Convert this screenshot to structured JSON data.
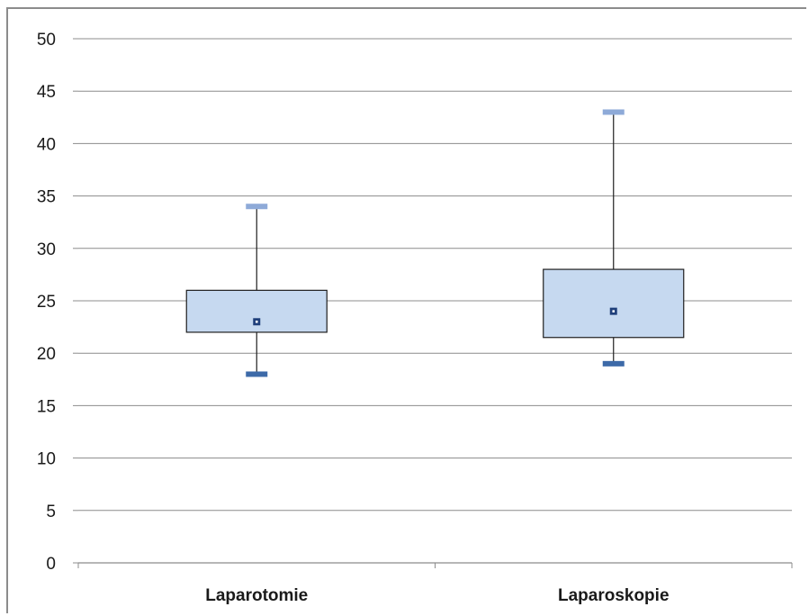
{
  "chart_data": {
    "type": "boxplot",
    "categories": [
      "Laparotomie",
      "Laparoskopie"
    ],
    "boxes": [
      {
        "category": "Laparotomie",
        "min": 18,
        "q1": 22,
        "median": 23,
        "q3": 26,
        "max": 34
      },
      {
        "category": "Laparoskopie",
        "min": 19,
        "q1": 21.5,
        "median": 24,
        "q3": 28,
        "max": 43
      }
    ],
    "ylim": [
      0,
      50
    ],
    "yticks": [
      0,
      5,
      10,
      15,
      20,
      25,
      30,
      35,
      40,
      45,
      50
    ],
    "grid": true,
    "title": "",
    "xlabel": "",
    "ylabel": "",
    "colors": {
      "box_fill": "#c6d9f0",
      "box_stroke": "#1f1f1f",
      "max_cap": "#8eaad8",
      "min_cap": "#3d6aa8",
      "median_marker": "#1f3f7a",
      "grid": "#8c8c8c"
    }
  }
}
